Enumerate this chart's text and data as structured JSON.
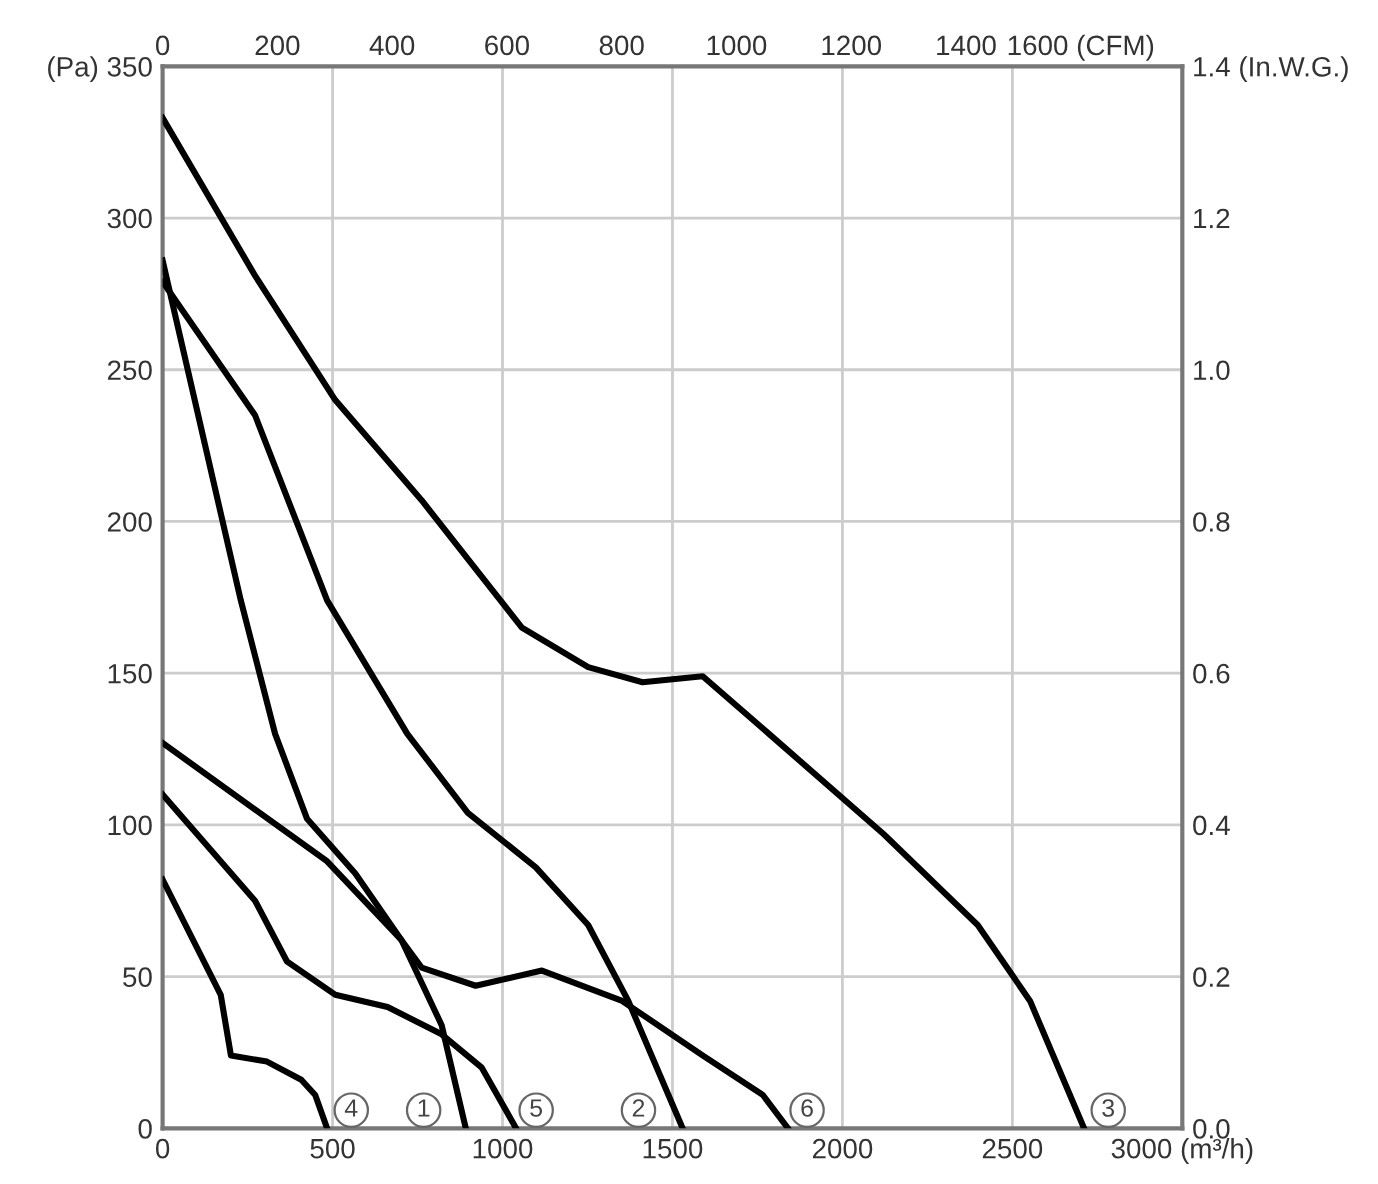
{
  "chart_data": {
    "type": "line",
    "xlim": [
      0,
      3000
    ],
    "xticks": [
      0,
      500,
      1000,
      1500,
      2000,
      2500,
      {
        "value": 3000,
        "label": "3000 (m³/h)"
      }
    ],
    "ylim": [
      0,
      350
    ],
    "yticks": [
      0,
      50,
      100,
      150,
      200,
      250,
      300,
      {
        "value": 350,
        "label": "(Pa) 350"
      }
    ],
    "y2lim": [
      0,
      1.4
    ],
    "y2ticks": [
      {
        "value": 0,
        "label": "0.0"
      },
      0.2,
      0.4,
      0.6,
      0.8,
      {
        "value": 1,
        "label": "1.0"
      },
      1.2,
      {
        "value": 1.4,
        "label": "1.4 (In.W.G.)"
      }
    ],
    "x2lim": [
      0,
      1777
    ],
    "x2ticks": [
      0,
      200,
      400,
      600,
      800,
      1000,
      1200,
      1400,
      {
        "value": 1600,
        "label": "1600 (CFM)"
      }
    ],
    "grid": true,
    "marker": "none",
    "line_style": "solid",
    "series": [
      {
        "color": "#000000",
        "x": [
          0,
          230,
          331,
          425,
          567,
          703,
          821,
          892
        ],
        "values": [
          286,
          174,
          130,
          102,
          84,
          62,
          34,
          0
        ]
      },
      {
        "color": "#000000",
        "x": [
          0,
          272,
          484,
          720,
          898,
          1098,
          1252,
          1370,
          1530
        ],
        "values": [
          279,
          235,
          174,
          130,
          104,
          86,
          67,
          42,
          0
        ]
      },
      {
        "color": "#000000",
        "x": [
          0,
          272,
          508,
          762,
          980,
          1057,
          1252,
          1412,
          1589,
          1784,
          2121,
          2398,
          2552,
          2711
        ],
        "values": [
          333,
          281,
          240,
          207,
          176,
          165,
          152,
          147,
          149,
          130,
          97,
          67,
          42,
          0
        ]
      },
      {
        "color": "#000000",
        "x": [
          0,
          171,
          201,
          307,
          408,
          449,
          484
        ],
        "values": [
          82,
          44,
          24,
          22,
          16,
          11,
          0
        ]
      },
      {
        "color": "#000000",
        "x": [
          0,
          272,
          366,
          508,
          662,
          821,
          939,
          1040
        ],
        "values": [
          110,
          75,
          55,
          44,
          40,
          31,
          20,
          0
        ]
      },
      {
        "color": "#000000",
        "x": [
          0,
          484,
          703,
          762,
          921,
          1116,
          1352,
          1589,
          1766,
          1840
        ],
        "values": [
          127,
          88,
          62,
          53,
          47,
          52,
          42,
          24,
          11,
          0
        ]
      }
    ],
    "annotations": [
      {
        "text": "4",
        "x": 555,
        "y": 6
      },
      {
        "text": "1",
        "x": 768,
        "y": 6
      },
      {
        "text": "5",
        "x": 1099,
        "y": 6
      },
      {
        "text": "2",
        "x": 1400,
        "y": 6
      },
      {
        "text": "6",
        "x": 1896,
        "y": 6
      },
      {
        "text": "3",
        "x": 2782,
        "y": 6
      }
    ]
  }
}
